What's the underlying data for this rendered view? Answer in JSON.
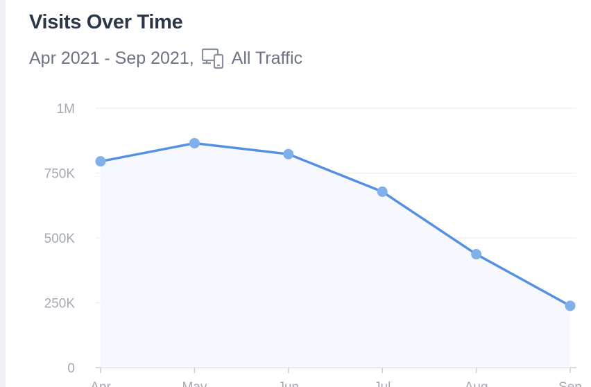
{
  "header": {
    "title": "Visits Over Time",
    "date_range": "Apr 2021 - Sep 2021,",
    "traffic_icon": "devices-icon",
    "traffic_label": "All Traffic"
  },
  "colors": {
    "title": "#2b3648",
    "subtitle": "#6c7483",
    "line": "#5590e4",
    "point": "#7fb0ea",
    "area": "#f7f8fd",
    "grid": "#e6e8ee",
    "tick": "#a4a9b4"
  },
  "chart_data": {
    "type": "line",
    "title": "Visits Over Time",
    "xlabel": "",
    "ylabel": "",
    "categories": [
      "Apr",
      "May",
      "Jun",
      "Jul",
      "Aug",
      "Sep"
    ],
    "values": [
      795000,
      865000,
      823000,
      678000,
      437000,
      238000
    ],
    "ylim": [
      0,
      1000000
    ],
    "yticks": [
      0,
      250000,
      500000,
      750000,
      1000000
    ],
    "ytick_labels": [
      "0",
      "250K",
      "500K",
      "750K",
      "1M"
    ],
    "grid": true,
    "fill_area": true
  }
}
